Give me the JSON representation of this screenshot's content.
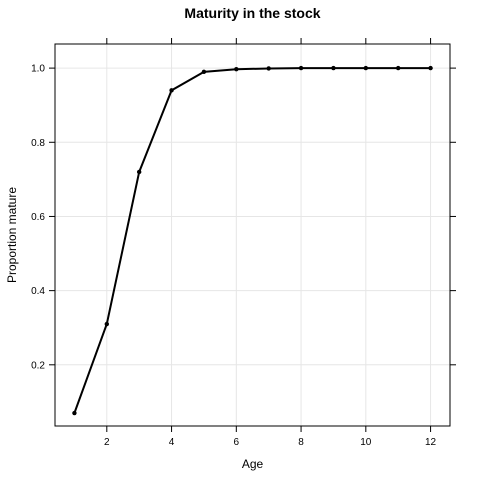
{
  "chart_data": {
    "type": "line",
    "title": "Maturity in the stock",
    "xlabel": "Age",
    "ylabel": "Proportion mature",
    "xlim": [
      0.4,
      12.6
    ],
    "ylim": [
      0.035,
      1.065
    ],
    "xticks": [
      2,
      4,
      6,
      8,
      10,
      12
    ],
    "yticks": [
      0.2,
      0.4,
      0.6,
      0.8,
      1.0
    ],
    "ytick_labels": [
      "0.2",
      "0.4",
      "0.6",
      "0.8",
      "1.0"
    ],
    "grid": true,
    "legend": "none",
    "series": [
      {
        "x": [
          1,
          2,
          3,
          4,
          5,
          6,
          7,
          8,
          9,
          10,
          11,
          12
        ],
        "values": [
          0.07,
          0.31,
          0.72,
          0.94,
          0.99,
          0.997,
          0.999,
          1.0,
          1.0,
          1.0,
          1.0,
          1.0
        ]
      }
    ]
  }
}
